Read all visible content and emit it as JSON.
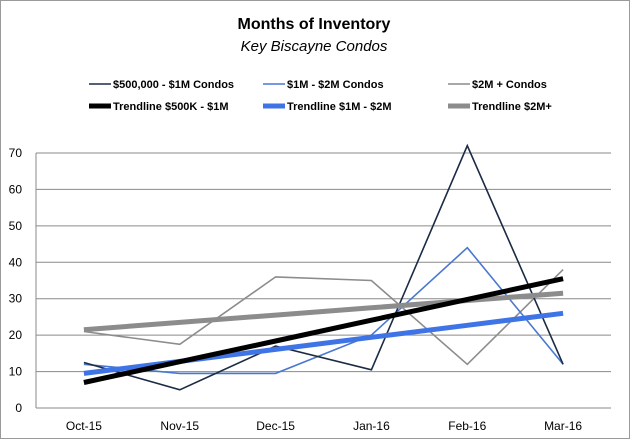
{
  "chart_data": {
    "type": "line",
    "title": "Months of Inventory",
    "subtitle": "Key Biscayne Condos",
    "xlabel": "",
    "ylabel": "",
    "categories": [
      "Oct-15",
      "Nov-15",
      "Dec-15",
      "Jan-16",
      "Feb-16",
      "Mar-16"
    ],
    "ylim": [
      0,
      70
    ],
    "yticks": [
      "0",
      "10",
      "20",
      "30",
      "40",
      "50",
      "60",
      "70"
    ],
    "grid": "horizontal",
    "legend_position": "top",
    "series": [
      {
        "name": "$500,000 - $1M Condos",
        "values": [
          12.5,
          5,
          17,
          10.5,
          72,
          12
        ],
        "color": "#1c2b45",
        "kind": "data"
      },
      {
        "name": "$1M - $2M Condos",
        "values": [
          12,
          9.5,
          9.5,
          20,
          44,
          12
        ],
        "color": "#4a78d0",
        "kind": "data"
      },
      {
        "name": "$2M + Condos",
        "values": [
          21,
          17.5,
          36,
          35,
          12,
          38
        ],
        "color": "#8c8c8c",
        "kind": "data"
      },
      {
        "name": "Trendline $500K - $1M",
        "values": [
          7,
          12.7,
          18.4,
          24.1,
          29.8,
          35.5
        ],
        "color": "#000000",
        "kind": "trend"
      },
      {
        "name": "Trendline $1M - $2M",
        "values": [
          9.5,
          12.8,
          16.1,
          19.4,
          22.7,
          26
        ],
        "color": "#3f74e6",
        "kind": "trend"
      },
      {
        "name": "Trendline $2M+",
        "values": [
          21.5,
          23.5,
          25.5,
          27.5,
          29.5,
          31.5
        ],
        "color": "#8c8c8c",
        "kind": "trend"
      }
    ]
  }
}
